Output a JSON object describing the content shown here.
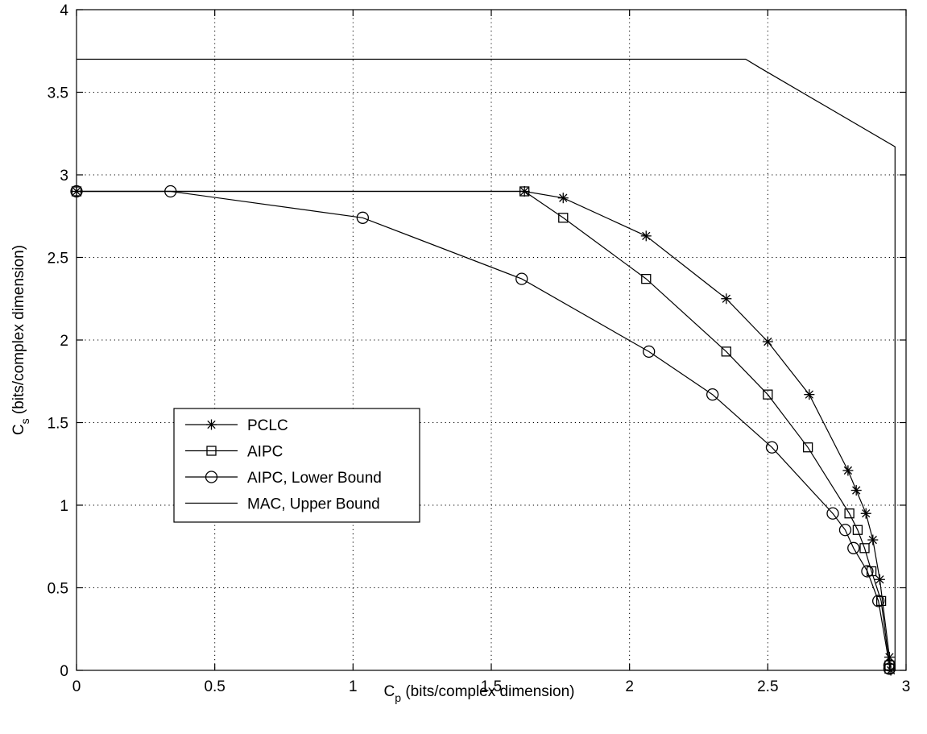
{
  "chart_data": {
    "type": "line",
    "xlabel": {
      "main": "C",
      "sub": "p",
      "rest": " (bits/complex dimension)"
    },
    "ylabel": {
      "main": "C",
      "sub": "s",
      "rest": " (bits/complex dimension)"
    },
    "xlim": [
      0,
      3
    ],
    "ylim": [
      0,
      4
    ],
    "xticks": [
      0,
      0.5,
      1,
      1.5,
      2,
      2.5,
      3
    ],
    "yticks": [
      0,
      0.5,
      1,
      1.5,
      2,
      2.5,
      3,
      3.5,
      4
    ],
    "xtick_labels": [
      "0",
      "0.5",
      "1",
      "1.5",
      "2",
      "2.5",
      "3"
    ],
    "ytick_labels": [
      "0",
      "0.5",
      "1",
      "1.5",
      "2",
      "2.5",
      "3",
      "3.5",
      "4"
    ],
    "grid": true,
    "grid_style": "dotted",
    "legend_position": "lower-left",
    "series": [
      {
        "name": "PCLC",
        "marker": "asterisk",
        "x": [
          0,
          1.62,
          1.76,
          2.06,
          2.35,
          2.5,
          2.65,
          2.79,
          2.82,
          2.855,
          2.88,
          2.905,
          2.94,
          2.945
        ],
        "y": [
          2.9,
          2.9,
          2.86,
          2.63,
          2.25,
          1.99,
          1.67,
          1.21,
          1.09,
          0.95,
          0.79,
          0.55,
          0.08,
          0.0
        ]
      },
      {
        "name": "AIPC",
        "marker": "square",
        "x": [
          0,
          1.62,
          1.76,
          2.06,
          2.35,
          2.5,
          2.645,
          2.795,
          2.825,
          2.85,
          2.875,
          2.91,
          2.94,
          2.94
        ],
        "y": [
          2.9,
          2.9,
          2.74,
          2.37,
          1.93,
          1.67,
          1.35,
          0.95,
          0.85,
          0.74,
          0.6,
          0.42,
          0.03,
          0.01
        ]
      },
      {
        "name": "AIPC, Lower Bound",
        "marker": "circle",
        "x": [
          0,
          0.34,
          1.035,
          1.61,
          2.07,
          2.3,
          2.515,
          2.735,
          2.78,
          2.81,
          2.86,
          2.9,
          2.94,
          2.94
        ],
        "y": [
          2.9,
          2.9,
          2.74,
          2.37,
          1.93,
          1.67,
          1.35,
          0.95,
          0.85,
          0.74,
          0.6,
          0.42,
          0.03,
          0.01
        ]
      },
      {
        "name": "MAC, Upper Bound",
        "marker": "none",
        "x": [
          0,
          2.42,
          2.47,
          2.96,
          2.96
        ],
        "y": [
          3.7,
          3.7,
          3.65,
          3.17,
          0
        ]
      }
    ]
  }
}
